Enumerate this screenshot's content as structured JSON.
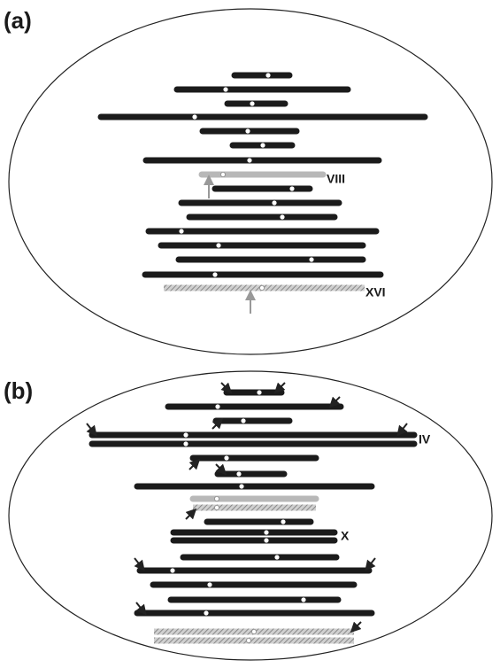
{
  "panels": [
    {
      "label": "(a)",
      "chromosome_labels": [
        "VIII",
        "XVI"
      ]
    },
    {
      "label": "(b)",
      "chromosome_labels": [
        "IV",
        "X"
      ]
    }
  ]
}
